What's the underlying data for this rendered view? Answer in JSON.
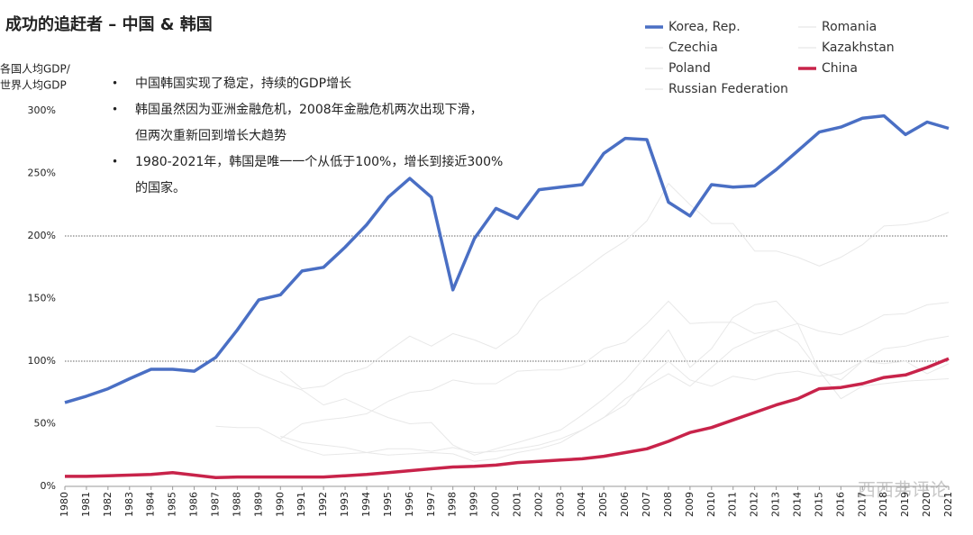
{
  "chart_data": {
    "type": "line",
    "title": "成功的追赶者 – 中国 & 韩国",
    "y_label": [
      "各国人均GDP/",
      "世界人均GDP"
    ],
    "bullets": [
      [
        "中国韩国实现了稳定，持续的GDP增长"
      ],
      [
        "韩国虽然因为亚洲金融危机，2008年金融危机两次出现下滑，",
        "但两次重新回到增长大趋势"
      ],
      [
        "1980-2021年，韩国是唯一一个从低于100%，增长到接近300%",
        "的国家。"
      ]
    ],
    "watermark": "西西弗评论",
    "categories": [
      "1980",
      "1981",
      "1982",
      "1983",
      "1984",
      "1985",
      "1986",
      "1987",
      "1988",
      "1989",
      "1990",
      "1991",
      "1992",
      "1993",
      "1994",
      "1995",
      "1996",
      "1997",
      "1998",
      "1999",
      "2000",
      "2001",
      "2002",
      "2003",
      "2004",
      "2005",
      "2006",
      "2007",
      "2008",
      "2009",
      "2010",
      "2011",
      "2012",
      "2013",
      "2014",
      "2015",
      "2016",
      "2017",
      "2018",
      "2019",
      "2020",
      "2021"
    ],
    "series": [
      {
        "name": "Korea, Rep.",
        "color": "#4a6fc4",
        "width": 3.5,
        "values": [
          67,
          72,
          78,
          86,
          93.5,
          93.5,
          92,
          103,
          125,
          149,
          153,
          172,
          175,
          191,
          209,
          231,
          246,
          231,
          157,
          198,
          222,
          214,
          237,
          239,
          241,
          266,
          278,
          277,
          227,
          216,
          241,
          239,
          240,
          253,
          268,
          283,
          287,
          294,
          296,
          281,
          291,
          286
        ]
      },
      {
        "name": "Czechia",
        "color": "#e8e8e8",
        "width": 1,
        "values": [
          null,
          null,
          null,
          null,
          null,
          null,
          null,
          null,
          null,
          null,
          92,
          78,
          80,
          90,
          95,
          108,
          120,
          112,
          122,
          117,
          110,
          122,
          148,
          160,
          172,
          185,
          196,
          212,
          242,
          225,
          210,
          210,
          188,
          188,
          183,
          176,
          183,
          193,
          208,
          209,
          212,
          219
        ]
      },
      {
        "name": "Poland",
        "color": "#e8e8e8",
        "width": 1,
        "values": [
          null,
          null,
          null,
          null,
          null,
          null,
          null,
          48,
          47,
          47,
          38,
          50,
          53,
          55,
          58,
          68,
          75,
          77,
          85,
          82,
          82,
          92,
          93,
          93,
          97,
          110,
          115,
          130,
          148,
          130,
          131,
          131,
          122,
          125,
          130,
          124,
          121,
          128,
          137,
          138,
          145,
          147
        ]
      },
      {
        "name": "Russian Federation",
        "color": "#e8e8e8",
        "width": 1,
        "values": [
          null,
          null,
          null,
          null,
          null,
          null,
          null,
          null,
          100,
          90,
          83,
          77,
          65,
          70,
          62,
          55,
          50,
          51,
          33,
          25,
          30,
          35,
          40,
          45,
          57,
          70,
          85,
          105,
          125,
          95,
          110,
          135,
          145,
          148,
          130,
          92,
          85,
          100,
          98,
          100,
          90,
          98
        ]
      },
      {
        "name": "Romania",
        "color": "#e8e8e8",
        "width": 1,
        "values": [
          null,
          null,
          null,
          null,
          null,
          null,
          null,
          null,
          null,
          null,
          37,
          30,
          25,
          26,
          27,
          30,
          30,
          28,
          31,
          27,
          28,
          30,
          33,
          38,
          45,
          55,
          65,
          85,
          100,
          85,
          80,
          88,
          85,
          90,
          92,
          88,
          90,
          100,
          110,
          112,
          117,
          120
        ]
      },
      {
        "name": "Kazakhstan",
        "color": "#e8e8e8",
        "width": 1,
        "values": [
          null,
          null,
          null,
          null,
          null,
          null,
          null,
          null,
          null,
          null,
          40,
          35,
          33,
          31,
          27,
          25,
          26,
          27,
          26,
          20,
          22,
          27,
          30,
          35,
          45,
          55,
          70,
          80,
          90,
          80,
          95,
          110,
          118,
          125,
          115,
          92,
          70,
          80,
          82,
          84,
          85,
          86
        ]
      },
      {
        "name": "China",
        "color": "#c8234a",
        "width": 3.5,
        "values": [
          8,
          8,
          8.5,
          9,
          9.5,
          11,
          9,
          7,
          7.5,
          7.5,
          7.5,
          7.5,
          7.5,
          8.5,
          9.5,
          11,
          12.5,
          14,
          15.5,
          16,
          17,
          19,
          20,
          21,
          22,
          24,
          27,
          30,
          36,
          43,
          47,
          53,
          59,
          65,
          70,
          78,
          79,
          82,
          87,
          89,
          95,
          102
        ]
      }
    ],
    "ylim": [
      0,
      300
    ],
    "yticks": [
      {
        "value": 0,
        "label": "0%"
      },
      {
        "value": 50,
        "label": "50%"
      },
      {
        "value": 100,
        "label": "100%"
      },
      {
        "value": 150,
        "label": "150%"
      },
      {
        "value": 200,
        "label": "200%"
      },
      {
        "value": 250,
        "label": "250%"
      },
      {
        "value": 300,
        "label": "300%"
      }
    ],
    "hlines": [
      100,
      200
    ]
  }
}
